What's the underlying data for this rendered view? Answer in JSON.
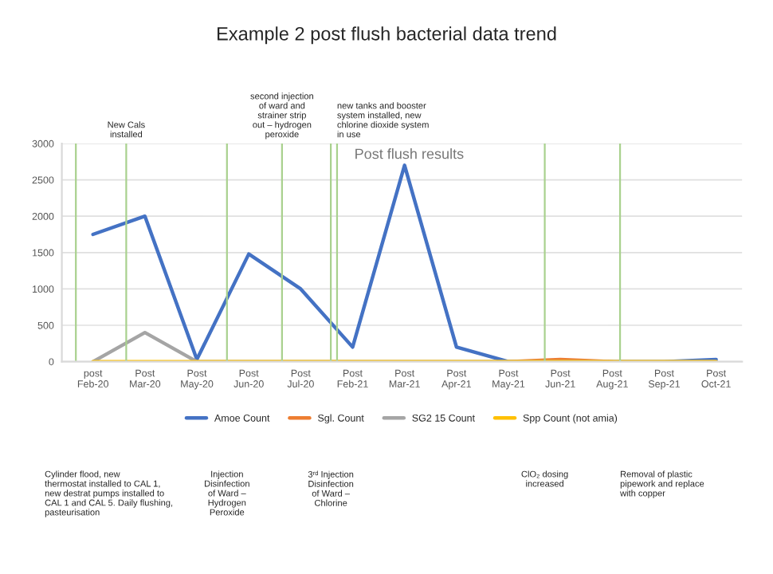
{
  "chart_data": {
    "type": "line",
    "title": "Example 2 post flush bacterial data trend",
    "subtitle": "Post flush results",
    "categories": [
      "post\nFeb-20",
      "Post\nMar-20",
      "Post\nMay-20",
      "Post\nJun-20",
      "Post\nJul-20",
      "Post\nFeb-21",
      "Post\nMar-21",
      "Post\nApr-21",
      "Post\nMay-21",
      "Post\nJun-21",
      "Post\nAug-21",
      "Post\nSep-21",
      "Post\nOct-21"
    ],
    "ylim": [
      0,
      3000
    ],
    "yticks": [
      0,
      500,
      1000,
      1500,
      2000,
      2500,
      3000
    ],
    "series": [
      {
        "name": "Amoe Count",
        "color": "#4472c4",
        "values": [
          1750,
          2000,
          30,
          1480,
          1000,
          200,
          2700,
          200,
          0,
          null,
          0,
          0,
          30
        ]
      },
      {
        "name": "Sgl. Count",
        "color": "#ed7d31",
        "values": [
          null,
          null,
          null,
          null,
          null,
          null,
          null,
          null,
          0,
          30,
          0,
          null,
          null
        ]
      },
      {
        "name": "SG2 15 Count",
        "color": "#a5a5a5",
        "values": [
          0,
          400,
          0,
          0,
          0,
          0,
          0,
          0,
          0,
          0,
          0,
          0,
          0
        ]
      },
      {
        "name": "Spp Count (not amia)",
        "color": "#ffc000",
        "values": [
          0,
          0,
          0,
          0,
          0,
          0,
          0,
          0,
          0,
          0,
          0,
          0,
          0
        ]
      }
    ],
    "annotations": [
      "Cylinder flood, new\nthermostat installed to CAL 1,\nnew destrat pumps installed to\nCAL 1 and CAL 5. Daily flushing,\npasteurisation",
      "New Cals\ninstalled",
      "Injection\nDisinfection\nof Ward –\nHydrogen\nPeroxide",
      "second injection\nof ward and\nstrainer strip\nout – hydrogen\nperoxide",
      "3ʳᵈ Injection\nDisinfection\nof Ward –\nChlorine",
      "new tanks and booster\nsystem installed, new\nchlorine dioxide system\nin use",
      "ClO₂ dosing\nincreased",
      "Removal of plastic\npipework and replace\nwith copper"
    ],
    "grid": "y",
    "legend": "bottom",
    "marker": "none",
    "line_style": "solid"
  }
}
